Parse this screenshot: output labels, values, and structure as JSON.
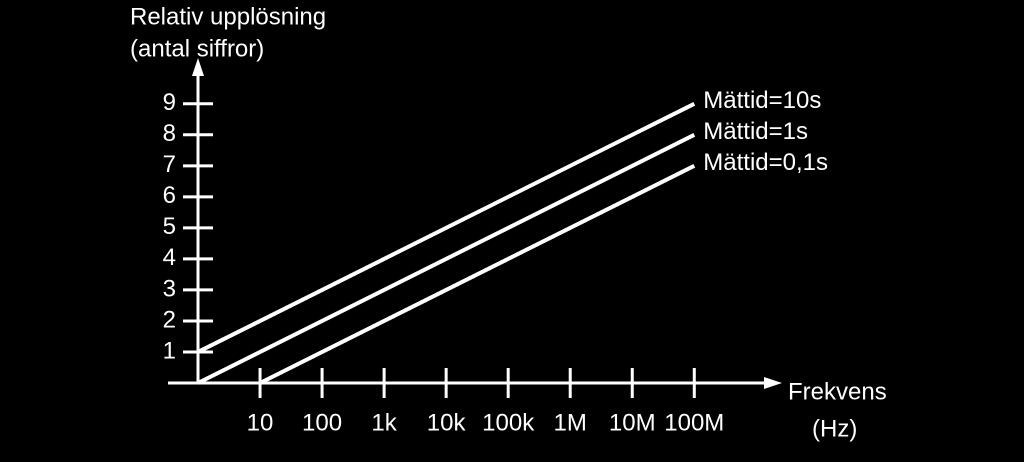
{
  "chart_data": {
    "type": "line",
    "ylabel": [
      "Relativ upplösning",
      "(antal siffror)"
    ],
    "xlabel": [
      "Frekvens",
      "(Hz)"
    ],
    "xscale": "log",
    "xlim": [
      1,
      2000000000
    ],
    "ylim": [
      0,
      10.25
    ],
    "yticks": [
      1,
      2,
      3,
      4,
      5,
      6,
      7,
      8,
      9
    ],
    "xticks": [
      10,
      100,
      {
        "value": 1000,
        "label": "1k"
      },
      {
        "value": 10000,
        "label": "10k"
      },
      {
        "value": 100000,
        "label": "100k"
      },
      {
        "value": 1000000,
        "label": "1M"
      },
      {
        "value": 10000000,
        "label": "10M"
      },
      {
        "value": 100000000,
        "label": "100M"
      }
    ],
    "series": [
      {
        "name": "Mättid=10s",
        "color": "#ffffff",
        "x": [
          1,
          100000000
        ],
        "values": [
          1,
          9
        ]
      },
      {
        "name": "Mättid=1s",
        "color": "#ffffff",
        "x": [
          1,
          100000000
        ],
        "values": [
          0,
          8
        ]
      },
      {
        "name": "Mättid=0,1s",
        "color": "#ffffff",
        "x": [
          10,
          100000000
        ],
        "values": [
          0,
          7
        ]
      }
    ]
  }
}
